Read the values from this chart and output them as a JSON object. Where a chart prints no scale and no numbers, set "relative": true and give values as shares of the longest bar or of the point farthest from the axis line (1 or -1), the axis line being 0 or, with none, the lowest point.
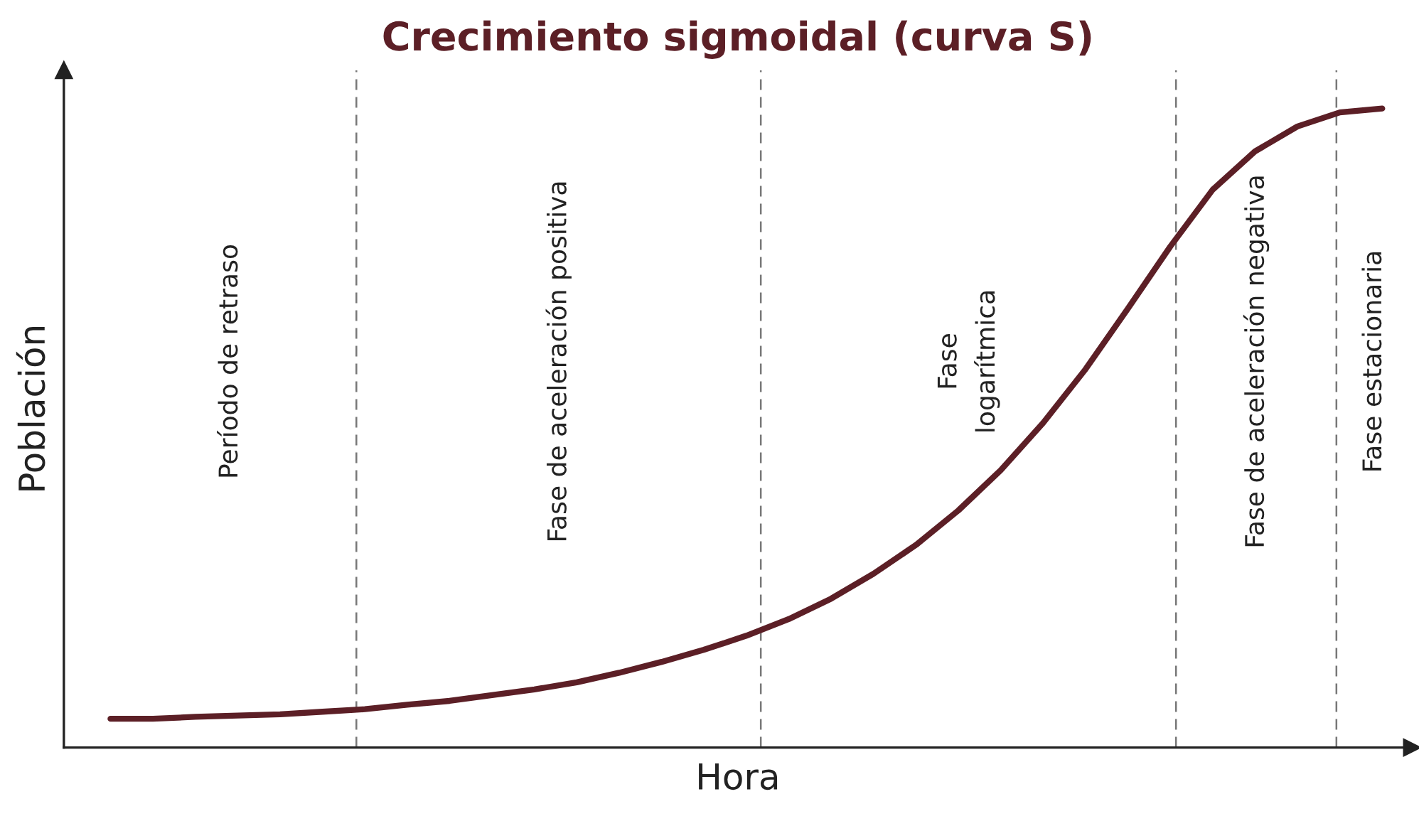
{
  "chart_data": {
    "type": "line",
    "title": "Crecimiento sigmoidal (curva S)",
    "xlabel": "Hora",
    "ylabel": "Población",
    "relative": true,
    "grid": false,
    "annotations": [
      "Período de retraso",
      "Fase de aceleración positiva",
      "Fase\nlogarítmica",
      "Fase de aceleración negativa",
      "Fase estacionaria"
    ],
    "categories": [
      null,
      null,
      null,
      null,
      null,
      null,
      null,
      null,
      null,
      null,
      null,
      null,
      null,
      null,
      null,
      null,
      null,
      null,
      null,
      null,
      null,
      null,
      null,
      null,
      null,
      null,
      null,
      null,
      null,
      null,
      null
    ],
    "series": [
      {
        "color": "#5c1f26",
        "values": [
          0.045,
          0.045,
          0.048,
          0.05,
          0.052,
          0.056,
          0.06,
          0.067,
          0.073,
          0.082,
          0.091,
          0.102,
          0.117,
          0.134,
          0.153,
          0.175,
          0.201,
          0.233,
          0.272,
          0.317,
          0.371,
          0.434,
          0.508,
          0.592,
          0.687,
          0.784,
          0.873,
          0.933,
          0.972,
          0.994,
          1.0
        ]
      }
    ],
    "line_style": "solid"
  }
}
